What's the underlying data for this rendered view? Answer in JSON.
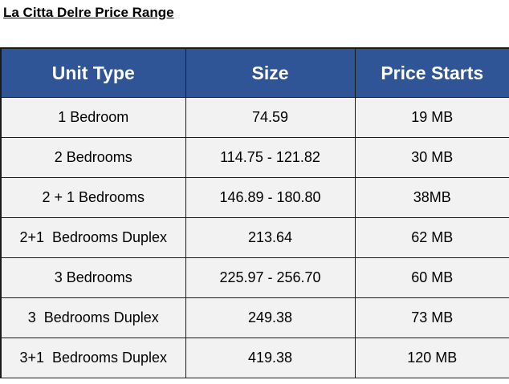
{
  "document": {
    "title": "La Citta Delre Price Range"
  },
  "table": {
    "headers": [
      "Unit Type",
      "Size",
      "Price Starts"
    ],
    "rows": [
      [
        "1 Bedroom",
        "74.59",
        "19 MB"
      ],
      [
        "2 Bedrooms",
        "114.75 - 121.82",
        "30 MB"
      ],
      [
        "2 + 1 Bedrooms",
        "146.89 - 180.80",
        "38MB"
      ],
      [
        "2+1  Bedrooms Duplex",
        "213.64",
        "62 MB"
      ],
      [
        "3 Bedrooms",
        "225.97 - 256.70",
        "60 MB"
      ],
      [
        "3  Bedrooms Duplex",
        "249.38",
        "73 MB"
      ],
      [
        "3+1  Bedrooms Duplex",
        "419.38",
        "120 MB"
      ]
    ]
  },
  "colors": {
    "header_background": "#2f5597",
    "header_text": "#ffffff",
    "cell_background": "#f2f2f2",
    "border": "#1a1a1a"
  }
}
